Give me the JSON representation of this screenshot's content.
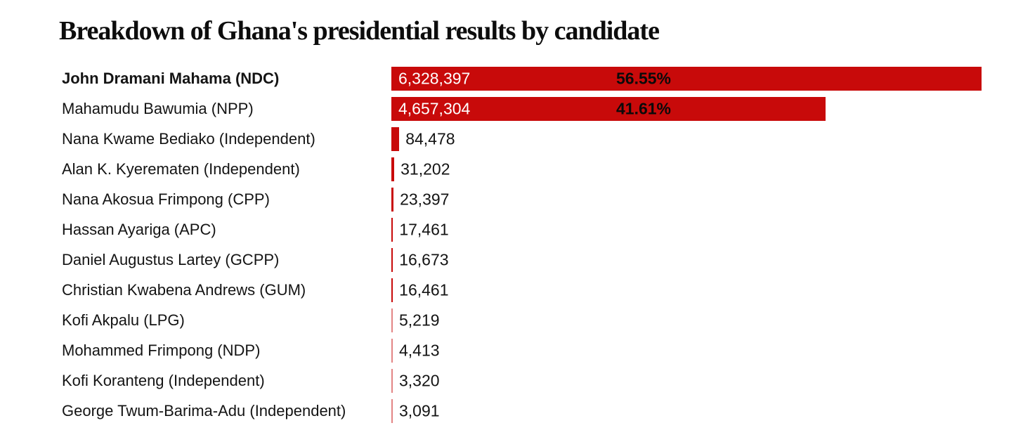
{
  "title": "Breakdown of Ghana's presidential results by candidate",
  "colors": {
    "bar_red": "#c80a0a",
    "label_text": "#141414",
    "value_inside_text": "#ffffff",
    "percent_text": "#0a0a0a",
    "background": "#ffffff"
  },
  "chart_data": {
    "type": "bar",
    "orientation": "horizontal",
    "title": "Breakdown of Ghana's presidential results by candidate",
    "xlabel": "",
    "ylabel": "",
    "legend": false,
    "grid": false,
    "value_range": [
      0,
      6328397
    ],
    "categories": [
      "John Dramani Mahama (NDC)",
      "Mahamudu Bawumia (NPP)",
      "Nana Kwame Bediako (Independent)",
      "Alan K. Kyerematen (Independent)",
      "Nana Akosua Frimpong (CPP)",
      "Hassan Ayariga (APC)",
      "Daniel Augustus Lartey (GCPP)",
      "Christian Kwabena Andrews (GUM)",
      "Kofi Akpalu (LPG)",
      "Mohammed Frimpong (NDP)",
      "Kofi Koranteng (Independent)",
      "George Twum-Barima-Adu (Independent)"
    ],
    "values": [
      6328397,
      4657304,
      84478,
      31202,
      23397,
      17461,
      16673,
      16461,
      5219,
      4413,
      3320,
      3091
    ],
    "rows": [
      {
        "label": "John Dramani Mahama (NDC)",
        "votes": 6328397,
        "votes_label": "6,328,397",
        "pct_label": "56.55%",
        "emphasis": true,
        "value_inside": true
      },
      {
        "label": "Mahamudu Bawumia (NPP)",
        "votes": 4657304,
        "votes_label": "4,657,304",
        "pct_label": "41.61%",
        "emphasis": false,
        "value_inside": true
      },
      {
        "label": "Nana Kwame Bediako (Independent)",
        "votes": 84478,
        "votes_label": "84,478",
        "emphasis": false,
        "value_inside": false
      },
      {
        "label": "Alan K. Kyerematen (Independent)",
        "votes": 31202,
        "votes_label": "31,202",
        "emphasis": false,
        "value_inside": false
      },
      {
        "label": "Nana Akosua Frimpong (CPP)",
        "votes": 23397,
        "votes_label": "23,397",
        "emphasis": false,
        "value_inside": false
      },
      {
        "label": "Hassan Ayariga (APC)",
        "votes": 17461,
        "votes_label": "17,461",
        "emphasis": false,
        "value_inside": false
      },
      {
        "label": "Daniel Augustus Lartey (GCPP)",
        "votes": 16673,
        "votes_label": "16,673",
        "emphasis": false,
        "value_inside": false
      },
      {
        "label": "Christian Kwabena Andrews (GUM)",
        "votes": 16461,
        "votes_label": "16,461",
        "emphasis": false,
        "value_inside": false
      },
      {
        "label": "Kofi Akpalu (LPG)",
        "votes": 5219,
        "votes_label": "5,219",
        "emphasis": false,
        "value_inside": false
      },
      {
        "label": "Mohammed Frimpong (NDP)",
        "votes": 4413,
        "votes_label": "4,413",
        "emphasis": false,
        "value_inside": false
      },
      {
        "label": "Kofi Koranteng (Independent)",
        "votes": 3320,
        "votes_label": "3,320",
        "emphasis": false,
        "value_inside": false
      },
      {
        "label": "George Twum-Barima-Adu (Independent)",
        "votes": 3091,
        "votes_label": "3,091",
        "emphasis": false,
        "value_inside": false
      }
    ]
  }
}
